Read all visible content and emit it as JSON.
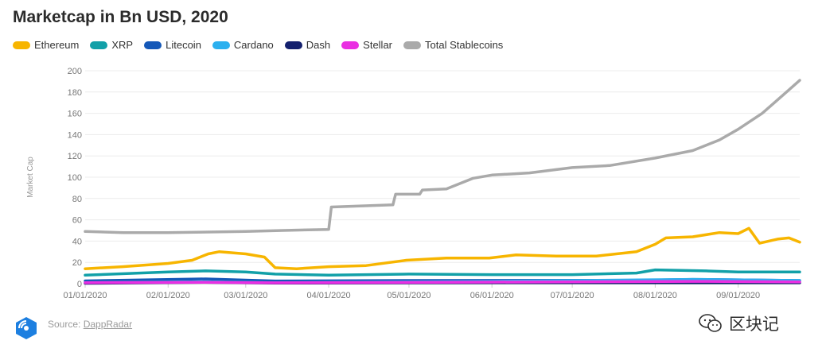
{
  "chart_data": {
    "type": "line",
    "title": "Marketcap in Bn USD, 2020",
    "ylabel": "Market Cap",
    "xlabel": "",
    "ylim": [
      0,
      200
    ],
    "yticks": [
      0,
      20,
      40,
      60,
      80,
      100,
      120,
      140,
      160,
      180,
      200
    ],
    "xticks": [
      "01/01/2020",
      "02/01/2020",
      "03/01/2020",
      "04/01/2020",
      "05/01/2020",
      "06/01/2020",
      "07/01/2020",
      "08/01/2020",
      "09/01/2020"
    ],
    "xrange": [
      "2020-01-01",
      "2020-09-24"
    ],
    "grid": "horizontal",
    "legend_position": "top-left",
    "series": [
      {
        "name": "Ethereum",
        "color": "#f7b500",
        "points": [
          [
            "2020-01-01",
            14
          ],
          [
            "2020-01-15",
            16
          ],
          [
            "2020-02-01",
            19
          ],
          [
            "2020-02-10",
            22
          ],
          [
            "2020-02-16",
            28
          ],
          [
            "2020-02-20",
            30
          ],
          [
            "2020-03-01",
            28
          ],
          [
            "2020-03-08",
            25
          ],
          [
            "2020-03-12",
            15
          ],
          [
            "2020-03-20",
            14
          ],
          [
            "2020-04-01",
            16
          ],
          [
            "2020-04-15",
            17
          ],
          [
            "2020-04-30",
            22
          ],
          [
            "2020-05-15",
            24
          ],
          [
            "2020-05-31",
            24
          ],
          [
            "2020-06-10",
            27
          ],
          [
            "2020-06-25",
            26
          ],
          [
            "2020-07-10",
            26
          ],
          [
            "2020-07-25",
            30
          ],
          [
            "2020-08-01",
            37
          ],
          [
            "2020-08-05",
            43
          ],
          [
            "2020-08-15",
            44
          ],
          [
            "2020-08-25",
            48
          ],
          [
            "2020-09-01",
            47
          ],
          [
            "2020-09-05",
            52
          ],
          [
            "2020-09-09",
            38
          ],
          [
            "2020-09-16",
            42
          ],
          [
            "2020-09-20",
            43
          ],
          [
            "2020-09-24",
            39
          ]
        ]
      },
      {
        "name": "XRP",
        "color": "#12a0a8",
        "points": [
          [
            "2020-01-01",
            8
          ],
          [
            "2020-02-01",
            11
          ],
          [
            "2020-02-15",
            12
          ],
          [
            "2020-03-01",
            11
          ],
          [
            "2020-03-12",
            9
          ],
          [
            "2020-04-01",
            8
          ],
          [
            "2020-05-01",
            9
          ],
          [
            "2020-06-01",
            8.5
          ],
          [
            "2020-07-01",
            8.5
          ],
          [
            "2020-07-25",
            10
          ],
          [
            "2020-08-01",
            13
          ],
          [
            "2020-08-20",
            12
          ],
          [
            "2020-09-01",
            11
          ],
          [
            "2020-09-24",
            11
          ]
        ]
      },
      {
        "name": "Litecoin",
        "color": "#1558b8",
        "points": [
          [
            "2020-01-01",
            2.6
          ],
          [
            "2020-02-15",
            4.5
          ],
          [
            "2020-03-12",
            2.5
          ],
          [
            "2020-05-01",
            3
          ],
          [
            "2020-07-25",
            3.2
          ],
          [
            "2020-08-15",
            4
          ],
          [
            "2020-09-24",
            3
          ]
        ]
      },
      {
        "name": "Cardano",
        "color": "#2bb0ef",
        "points": [
          [
            "2020-01-01",
            0.9
          ],
          [
            "2020-02-15",
            1.8
          ],
          [
            "2020-03-12",
            0.8
          ],
          [
            "2020-06-01",
            2.2
          ],
          [
            "2020-08-15",
            4
          ],
          [
            "2020-09-24",
            3
          ]
        ]
      },
      {
        "name": "Dash",
        "color": "#14206e",
        "points": [
          [
            "2020-01-01",
            0.4
          ],
          [
            "2020-02-15",
            1.2
          ],
          [
            "2020-03-12",
            0.5
          ],
          [
            "2020-06-01",
            0.8
          ],
          [
            "2020-09-24",
            0.8
          ]
        ]
      },
      {
        "name": "Stellar",
        "color": "#ea2fe2",
        "points": [
          [
            "2020-01-01",
            1
          ],
          [
            "2020-02-15",
            1.3
          ],
          [
            "2020-03-12",
            0.8
          ],
          [
            "2020-06-01",
            1.5
          ],
          [
            "2020-08-15",
            2.2
          ],
          [
            "2020-09-24",
            1.7
          ]
        ]
      },
      {
        "name": "Total Stablecoins",
        "color": "#aaaaaa",
        "points": [
          [
            "2020-01-01",
            49
          ],
          [
            "2020-01-15",
            48
          ],
          [
            "2020-02-01",
            48
          ],
          [
            "2020-03-01",
            49
          ],
          [
            "2020-03-15",
            50
          ],
          [
            "2020-04-01",
            51
          ],
          [
            "2020-04-02",
            72
          ],
          [
            "2020-04-25",
            74
          ],
          [
            "2020-04-26",
            84
          ],
          [
            "2020-05-05",
            84
          ],
          [
            "2020-05-06",
            88
          ],
          [
            "2020-05-15",
            89
          ],
          [
            "2020-05-25",
            99
          ],
          [
            "2020-06-01",
            102
          ],
          [
            "2020-06-15",
            104
          ],
          [
            "2020-07-01",
            109
          ],
          [
            "2020-07-15",
            111
          ],
          [
            "2020-08-01",
            118
          ],
          [
            "2020-08-15",
            125
          ],
          [
            "2020-08-25",
            135
          ],
          [
            "2020-09-01",
            145
          ],
          [
            "2020-09-10",
            160
          ],
          [
            "2020-09-20",
            182
          ],
          [
            "2020-09-24",
            191
          ]
        ]
      }
    ]
  },
  "source": {
    "prefix": "Source: ",
    "link": "DappRadar"
  },
  "watermark": {
    "text": "区块记"
  }
}
